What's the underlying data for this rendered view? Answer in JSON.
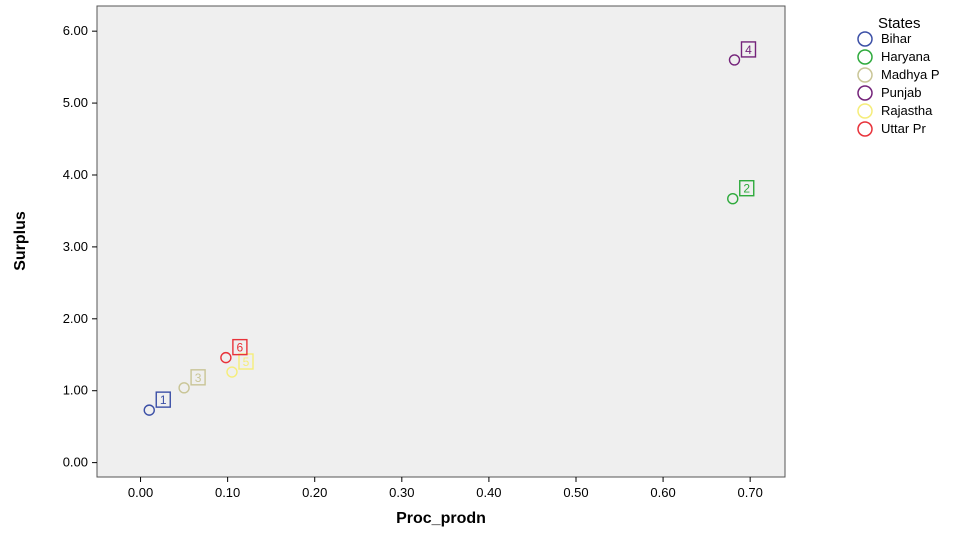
{
  "chart_data": {
    "type": "scatter",
    "xlabel": "Proc_prodn",
    "ylabel": "Surplus",
    "xlim": [
      -0.05,
      0.74
    ],
    "ylim": [
      -0.2,
      6.35
    ],
    "x_ticks": [
      "0.00",
      "0.10",
      "0.20",
      "0.30",
      "0.40",
      "0.50",
      "0.60",
      "0.70"
    ],
    "x_tick_values": [
      0,
      0.1,
      0.2,
      0.3,
      0.4,
      0.5,
      0.6,
      0.7
    ],
    "y_ticks": [
      "0.00",
      "1.00",
      "2.00",
      "3.00",
      "4.00",
      "5.00",
      "6.00"
    ],
    "y_tick_values": [
      0,
      1,
      2,
      3,
      4,
      5,
      6
    ],
    "grid": false,
    "plot_background": "#efefef",
    "legend": {
      "title": "States",
      "placement": "right",
      "entries": [
        {
          "label": "Bihar",
          "color": "#3b4fa6"
        },
        {
          "label": "Haryana",
          "color": "#2eaa3c"
        },
        {
          "label": "Madhya P",
          "color": "#c9c596"
        },
        {
          "label": "Punjab",
          "color": "#74237a"
        },
        {
          "label": "Rajastha",
          "color": "#f5ed7a"
        },
        {
          "label": "Uttar Pr",
          "color": "#e8323a"
        }
      ]
    },
    "series": [
      {
        "name": "Bihar",
        "color": "#3b4fa6",
        "point_label": "1",
        "points": [
          {
            "x": 0.01,
            "y": 0.73
          }
        ]
      },
      {
        "name": "Haryana",
        "color": "#2eaa3c",
        "point_label": "2",
        "points": [
          {
            "x": 0.68,
            "y": 3.67
          }
        ]
      },
      {
        "name": "Madhya P",
        "color": "#c9c596",
        "point_label": "3",
        "points": [
          {
            "x": 0.05,
            "y": 1.04
          }
        ]
      },
      {
        "name": "Punjab",
        "color": "#74237a",
        "point_label": "4",
        "points": [
          {
            "x": 0.682,
            "y": 5.6
          }
        ]
      },
      {
        "name": "Rajastha",
        "color": "#f5ed7a",
        "point_label": "5",
        "points": [
          {
            "x": 0.105,
            "y": 1.26
          }
        ]
      },
      {
        "name": "Uttar Pr",
        "color": "#e8323a",
        "point_label": "6",
        "points": [
          {
            "x": 0.098,
            "y": 1.46
          }
        ]
      }
    ]
  }
}
